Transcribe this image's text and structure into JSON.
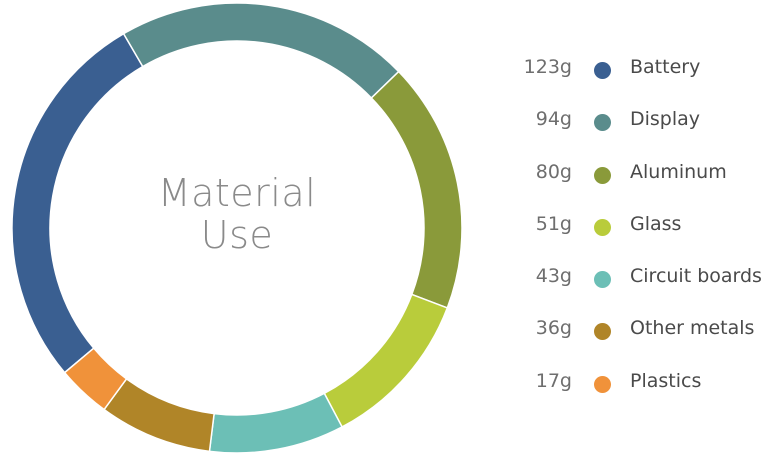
{
  "center_label": {
    "line1": "Material",
    "line2": "Use"
  },
  "chart_data": {
    "type": "pie",
    "title": "Material Use",
    "categories": [
      "Battery",
      "Display",
      "Aluminum",
      "Glass",
      "Circuit boards",
      "Other metals",
      "Plastics"
    ],
    "values": [
      123,
      94,
      80,
      51,
      43,
      36,
      17
    ],
    "value_labels": [
      "123g",
      "94g",
      "80g",
      "51g",
      "43g",
      "36g",
      "17g"
    ],
    "colors": [
      "#3a5f91",
      "#5a8c8c",
      "#8a9a3a",
      "#b9cc3b",
      "#6cbfb6",
      "#b08528",
      "#f0923a"
    ],
    "legend_position": "right",
    "style": "donut"
  }
}
